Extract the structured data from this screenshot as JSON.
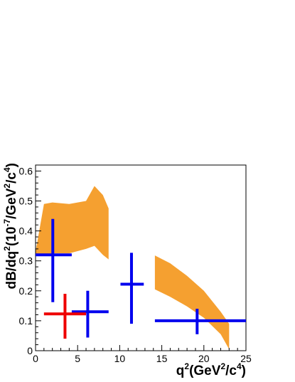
{
  "chart_data": {
    "type": "scatter",
    "title": "",
    "xlabel": {
      "main": "q",
      "sup1": "2",
      "mid": "(GeV",
      "sup2": "2",
      "mid2": "/c",
      "sup3": "4",
      "end": ")"
    },
    "ylabel": {
      "main": "dB/dq",
      "sup1": "2",
      "mid": "(10",
      "sup2": "-7",
      "mid2": "/GeV",
      "sup3": "2",
      "mid3": "/c",
      "sup4": "4",
      "end": ")"
    },
    "xlim": [
      0,
      25
    ],
    "ylim": [
      0,
      0.62
    ],
    "xticks": [
      0,
      5,
      10,
      15,
      20,
      25
    ],
    "yticks": [
      0,
      0.1,
      0.2,
      0.3,
      0.4,
      0.5,
      0.6
    ],
    "xtick_labels": [
      "0",
      "5",
      "10",
      "15",
      "20",
      "25"
    ],
    "ytick_labels": [
      "0",
      "0.1",
      "0.2",
      "0.3",
      "0.4",
      "0.5",
      "0.6"
    ],
    "grid": false,
    "bands": [
      {
        "color": "#f5a030",
        "x": [
          0,
          1,
          2,
          4,
          6,
          7,
          8,
          8.68
        ],
        "upper": [
          0.33,
          0.49,
          0.495,
          0.49,
          0.5,
          0.55,
          0.52,
          0.475
        ],
        "lower": [
          0.32,
          0.32,
          0.325,
          0.325,
          0.34,
          0.35,
          0.32,
          0.305
        ]
      },
      {
        "color": "#f5a030",
        "x": [
          14.18,
          16,
          18,
          20,
          22,
          23
        ],
        "upper": [
          0.318,
          0.292,
          0.25,
          0.2,
          0.13,
          0.09
        ],
        "lower": [
          0.205,
          0.18,
          0.148,
          0.11,
          0.055,
          0.005
        ]
      }
    ],
    "series": [
      {
        "color": "#0000ee",
        "points": [
          {
            "x": 2.05,
            "xlo": 0,
            "xhi": 4.3,
            "y": 0.32,
            "ylo": 0.162,
            "yhi": 0.44
          },
          {
            "x": 6.2,
            "xlo": 4.3,
            "xhi": 8.68,
            "y": 0.13,
            "ylo": 0.044,
            "yhi": 0.2
          },
          {
            "x": 11.4,
            "xlo": 10.09,
            "xhi": 12.86,
            "y": 0.222,
            "ylo": 0.09,
            "yhi": 0.327
          },
          {
            "x": 19.2,
            "xlo": 14.18,
            "xhi": 25,
            "y": 0.1,
            "ylo": 0.055,
            "yhi": 0.14
          }
        ]
      },
      {
        "color": "#ee0000",
        "points": [
          {
            "x": 3.5,
            "xlo": 1,
            "xhi": 6,
            "y": 0.123,
            "ylo": 0.04,
            "yhi": 0.19
          }
        ]
      }
    ]
  }
}
